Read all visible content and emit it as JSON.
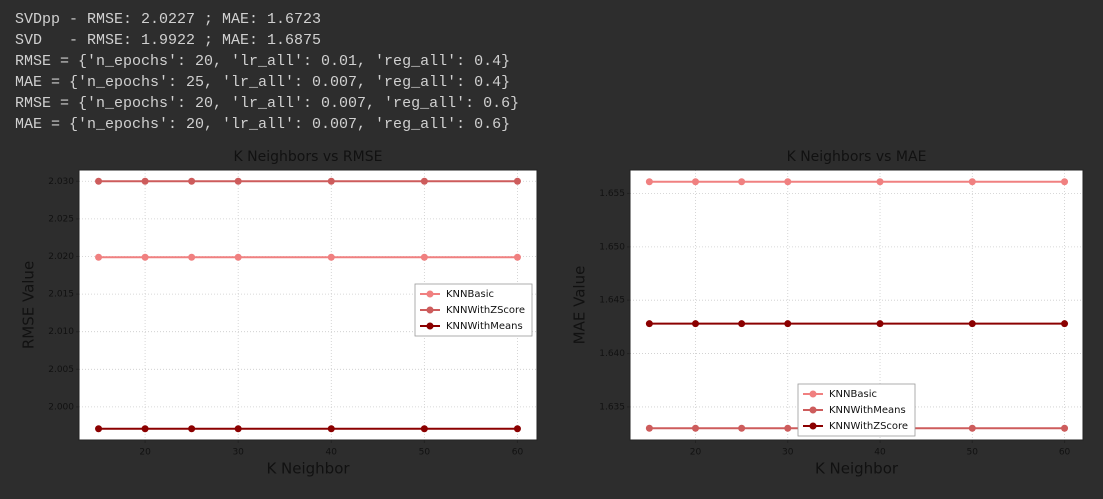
{
  "output_lines": [
    "SVDpp - RMSE: 2.0227 ; MAE: 1.6723",
    "SVD   - RMSE: 1.9922 ; MAE: 1.6875",
    "RMSE = {'n_epochs': 20, 'lr_all': 0.01, 'reg_all': 0.4}",
    "MAE = {'n_epochs': 25, 'lr_all': 0.007, 'reg_all': 0.4}",
    "RMSE = {'n_epochs': 20, 'lr_all': 0.007, 'reg_all': 0.6}",
    "MAE = {'n_epochs': 20, 'lr_all': 0.007, 'reg_all': 0.6}"
  ],
  "chart_data": [
    {
      "type": "line",
      "title": "K Neighbors vs RMSE",
      "x_label": "K Neighbor",
      "y_label": "RMSE Value",
      "x": [
        15,
        20,
        25,
        30,
        40,
        50,
        60
      ],
      "series": [
        {
          "name": "KNNBasic",
          "color": "#f08080",
          "values": [
            2.0199,
            2.0199,
            2.0199,
            2.0199,
            2.0199,
            2.0199,
            2.0199
          ]
        },
        {
          "name": "KNNWithZScore",
          "color": "#cd5c5c",
          "values": [
            2.03,
            2.03,
            2.03,
            2.03,
            2.03,
            2.03,
            2.03
          ]
        },
        {
          "name": "KNNWithMeans",
          "color": "#8b0000",
          "values": [
            1.9971,
            1.9971,
            1.9971,
            1.9971,
            1.9971,
            1.9971,
            1.9971
          ]
        }
      ],
      "xlim": [
        12.9,
        62.1
      ],
      "xticks": [
        20,
        30,
        40,
        50,
        60
      ],
      "ylim": [
        1.9956,
        2.0315
      ],
      "yticks": [
        {
          "value": 2,
          "label": "2.000"
        },
        2.005,
        {
          "value": 2.01,
          "label": "2.010"
        },
        2.015,
        {
          "value": 2.02,
          "label": "2.020"
        },
        2.025,
        {
          "value": 2.03,
          "label": "2.030"
        }
      ],
      "grid": true,
      "legend": "center right"
    },
    {
      "type": "line",
      "title": "K Neighbors vs MAE",
      "x_label": "K Neighbor",
      "y_label": "MAE Value",
      "x": [
        15,
        20,
        25,
        30,
        40,
        50,
        60
      ],
      "series": [
        {
          "name": "KNNBasic",
          "color": "#f08080",
          "values": [
            1.6561,
            1.6561,
            1.6561,
            1.6561,
            1.6561,
            1.6561,
            1.6561
          ]
        },
        {
          "name": "KNNWithMeans",
          "color": "#cd5c5c",
          "values": [
            1.633,
            1.633,
            1.633,
            1.633,
            1.633,
            1.633,
            1.633
          ]
        },
        {
          "name": "KNNWithZScore",
          "color": "#8b0000",
          "values": [
            1.6428,
            1.6428,
            1.6428,
            1.6428,
            1.6428,
            1.6428,
            1.6428
          ]
        }
      ],
      "xlim": [
        12.9,
        62.0
      ],
      "xticks": [
        20,
        30,
        40,
        50,
        60
      ],
      "ylim": [
        1.6319,
        1.6572
      ],
      "yticks": [
        1.635,
        {
          "value": 1.64,
          "label": "1.640"
        },
        1.645,
        {
          "value": 1.65,
          "label": "1.650"
        },
        1.655
      ],
      "grid": true,
      "legend": "lower center"
    }
  ]
}
